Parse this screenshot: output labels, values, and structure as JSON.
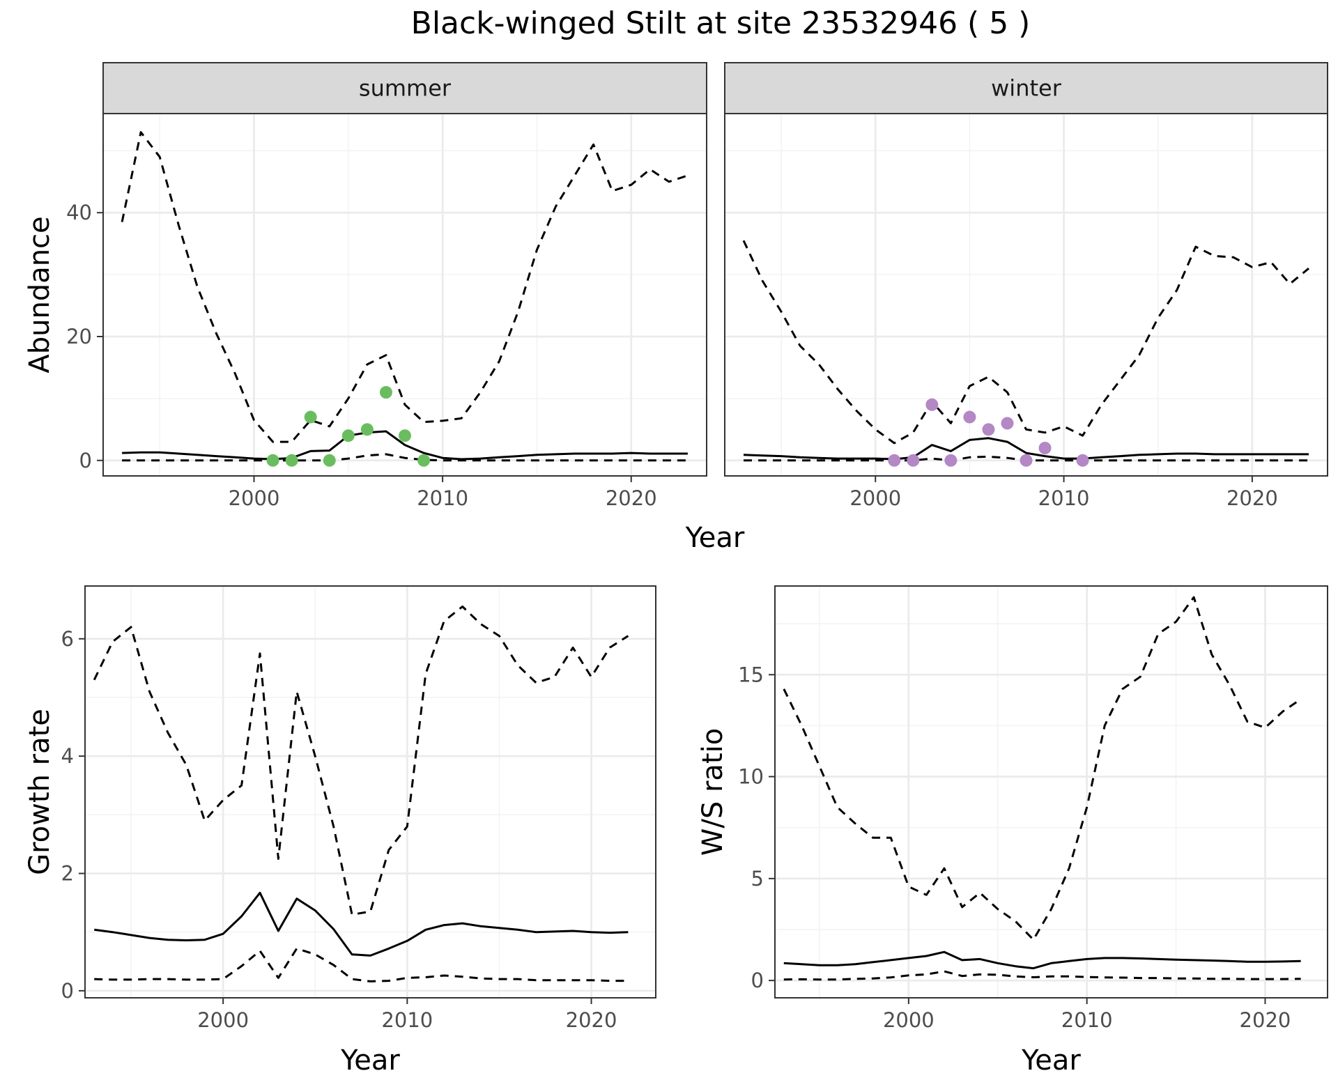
{
  "figure": {
    "title": "Black-winged Stilt at site 23532946 ( 5 )"
  },
  "chart_data": [
    {
      "id": "abundance-summer",
      "type": "line",
      "facet": "summer",
      "xlabel": "Year",
      "ylabel": "Abundance",
      "xlim": [
        1992,
        2024
      ],
      "ylim": [
        -2.5,
        56
      ],
      "xticks": [
        2000,
        2010,
        2020
      ],
      "yticks": [
        0,
        20,
        40
      ],
      "grid": true,
      "points_color": "#6ABD5F",
      "x": [
        1993,
        1994,
        1995,
        1996,
        1997,
        1998,
        1999,
        2000,
        2001,
        2002,
        2003,
        2004,
        2005,
        2006,
        2007,
        2008,
        2009,
        2010,
        2011,
        2012,
        2013,
        2014,
        2015,
        2016,
        2017,
        2018,
        2019,
        2020,
        2021,
        2022,
        2023
      ],
      "series": [
        {
          "role": "mean",
          "dash": "solid",
          "values": [
            1.2,
            1.3,
            1.3,
            1.1,
            0.9,
            0.7,
            0.5,
            0.3,
            0.2,
            0.4,
            1.5,
            1.6,
            4.0,
            4.5,
            4.7,
            2.5,
            1.2,
            0.4,
            0.2,
            0.3,
            0.5,
            0.7,
            0.9,
            1.0,
            1.1,
            1.1,
            1.1,
            1.2,
            1.1,
            1.1,
            1.1
          ]
        },
        {
          "role": "upper",
          "dash": "dashed",
          "values": [
            38.5,
            53,
            49,
            38,
            28,
            20.5,
            14,
            6.5,
            3,
            3,
            6.5,
            5.5,
            10,
            15.5,
            17,
            9,
            6.2,
            6.4,
            6.8,
            11,
            16,
            24,
            34,
            41,
            46,
            51,
            43.5,
            44.5,
            47,
            45,
            46
          ]
        },
        {
          "role": "lower",
          "dash": "dashed",
          "values": [
            0,
            0,
            0,
            0,
            0,
            0,
            0,
            0,
            0,
            0,
            0,
            0,
            0.3,
            0.8,
            1.0,
            0.4,
            0.1,
            0,
            0,
            0,
            0,
            0,
            0,
            0,
            0,
            0,
            0,
            0,
            0,
            0,
            0
          ]
        }
      ],
      "points": {
        "x": [
          2001,
          2002,
          2003,
          2004,
          2005,
          2006,
          2007,
          2008,
          2009
        ],
        "y": [
          0,
          0,
          7,
          0,
          4,
          5,
          11,
          4,
          0
        ]
      }
    },
    {
      "id": "abundance-winter",
      "type": "line",
      "facet": "winter",
      "xlabel": "Year",
      "ylabel": "Abundance",
      "xlim": [
        1992,
        2024
      ],
      "ylim": [
        -2.5,
        56
      ],
      "xticks": [
        2000,
        2010,
        2020
      ],
      "yticks": [
        0,
        20,
        40
      ],
      "grid": true,
      "points_color": "#B487C5",
      "x": [
        1993,
        1994,
        1995,
        1996,
        1997,
        1998,
        1999,
        2000,
        2001,
        2002,
        2003,
        2004,
        2005,
        2006,
        2007,
        2008,
        2009,
        2010,
        2011,
        2012,
        2013,
        2014,
        2015,
        2016,
        2017,
        2018,
        2019,
        2020,
        2021,
        2022,
        2023
      ],
      "series": [
        {
          "role": "mean",
          "dash": "solid",
          "values": [
            0.9,
            0.8,
            0.7,
            0.5,
            0.4,
            0.3,
            0.3,
            0.3,
            0.2,
            0.5,
            2.5,
            1.5,
            3.3,
            3.6,
            3.0,
            1.2,
            0.7,
            0.3,
            0.3,
            0.5,
            0.7,
            0.9,
            1.0,
            1.1,
            1.1,
            1.0,
            1.0,
            1.0,
            1.0,
            1.0,
            1.0
          ]
        },
        {
          "role": "upper",
          "dash": "dashed",
          "values": [
            35.5,
            29,
            24,
            18.5,
            15.5,
            11.5,
            8,
            5,
            2.8,
            4.5,
            9.5,
            6,
            12,
            13.5,
            11,
            5,
            4.5,
            5.5,
            4,
            9,
            13,
            17,
            23,
            27.5,
            34.5,
            33,
            32.8,
            31.2,
            32,
            28.5,
            31
          ]
        },
        {
          "role": "lower",
          "dash": "dashed",
          "values": [
            0,
            0,
            0,
            0,
            0,
            0,
            0,
            0,
            0,
            0,
            0.3,
            0,
            0.5,
            0.6,
            0.4,
            0,
            0,
            0,
            0,
            0,
            0,
            0,
            0,
            0,
            0,
            0,
            0,
            0,
            0,
            0,
            0
          ]
        }
      ],
      "points": {
        "x": [
          2001,
          2002,
          2003,
          2004,
          2005,
          2006,
          2007,
          2008,
          2009,
          2011
        ],
        "y": [
          0,
          0,
          9,
          0,
          7,
          5,
          6,
          0,
          2,
          0
        ]
      }
    },
    {
      "id": "growth-rate",
      "type": "line",
      "xlabel": "Year",
      "ylabel": "Growth rate",
      "xlim": [
        1992.5,
        2023.5
      ],
      "ylim": [
        -0.12,
        6.9
      ],
      "xticks": [
        2000,
        2010,
        2020
      ],
      "yticks": [
        0,
        2,
        4,
        6
      ],
      "grid": true,
      "x": [
        1993,
        1994,
        1995,
        1996,
        1997,
        1998,
        1999,
        2000,
        2001,
        2002,
        2003,
        2004,
        2005,
        2006,
        2007,
        2008,
        2009,
        2010,
        2011,
        2012,
        2013,
        2014,
        2015,
        2016,
        2017,
        2018,
        2019,
        2020,
        2021,
        2022
      ],
      "series": [
        {
          "role": "mean",
          "dash": "solid",
          "values": [
            1.04,
            1.0,
            0.95,
            0.9,
            0.87,
            0.86,
            0.87,
            0.97,
            1.27,
            1.67,
            1.02,
            1.57,
            1.37,
            1.05,
            0.62,
            0.6,
            0.72,
            0.85,
            1.04,
            1.12,
            1.15,
            1.1,
            1.07,
            1.04,
            1.0,
            1.01,
            1.02,
            1.0,
            0.99,
            1.0
          ]
        },
        {
          "role": "upper",
          "dash": "dashed",
          "values": [
            5.3,
            5.95,
            6.2,
            5.1,
            4.4,
            3.85,
            2.9,
            3.25,
            3.5,
            5.75,
            2.25,
            5.1,
            4.0,
            2.8,
            1.3,
            1.35,
            2.4,
            2.8,
            5.4,
            6.3,
            6.55,
            6.25,
            6.05,
            5.55,
            5.25,
            5.35,
            5.85,
            5.35,
            5.85,
            6.05
          ]
        },
        {
          "role": "lower",
          "dash": "dashed",
          "values": [
            0.2,
            0.19,
            0.19,
            0.2,
            0.2,
            0.19,
            0.19,
            0.2,
            0.42,
            0.68,
            0.22,
            0.72,
            0.62,
            0.44,
            0.2,
            0.16,
            0.17,
            0.22,
            0.23,
            0.26,
            0.24,
            0.21,
            0.2,
            0.2,
            0.18,
            0.18,
            0.18,
            0.18,
            0.17,
            0.17
          ]
        }
      ]
    },
    {
      "id": "ws-ratio",
      "type": "line",
      "xlabel": "Year",
      "ylabel": "W/S ratio",
      "xlim": [
        1992.5,
        2023.5
      ],
      "ylim": [
        -0.85,
        19.35
      ],
      "xticks": [
        2000,
        2010,
        2020
      ],
      "yticks": [
        0,
        5,
        10,
        15
      ],
      "grid": true,
      "x": [
        1993,
        1994,
        1995,
        1996,
        1997,
        1998,
        1999,
        2000,
        2001,
        2002,
        2003,
        2004,
        2005,
        2006,
        2007,
        2008,
        2009,
        2010,
        2011,
        2012,
        2013,
        2014,
        2015,
        2016,
        2017,
        2018,
        2019,
        2020,
        2021,
        2022
      ],
      "series": [
        {
          "role": "mean",
          "dash": "solid",
          "values": [
            0.85,
            0.8,
            0.75,
            0.75,
            0.8,
            0.9,
            1.0,
            1.1,
            1.2,
            1.4,
            1.0,
            1.05,
            0.85,
            0.7,
            0.6,
            0.85,
            0.95,
            1.05,
            1.1,
            1.1,
            1.08,
            1.05,
            1.02,
            1.0,
            0.98,
            0.95,
            0.92,
            0.92,
            0.93,
            0.95
          ]
        },
        {
          "role": "upper",
          "dash": "dashed",
          "values": [
            14.3,
            12.5,
            10.5,
            8.5,
            7.7,
            7.0,
            7.0,
            4.6,
            4.2,
            5.5,
            3.6,
            4.3,
            3.5,
            2.9,
            2.0,
            3.5,
            5.5,
            8.5,
            12.5,
            14.3,
            14.9,
            17.0,
            17.6,
            18.8,
            16.0,
            14.5,
            12.7,
            12.4,
            13.2,
            13.8
          ]
        },
        {
          "role": "lower",
          "dash": "dashed",
          "values": [
            0.05,
            0.06,
            0.05,
            0.05,
            0.08,
            0.1,
            0.15,
            0.25,
            0.3,
            0.45,
            0.22,
            0.3,
            0.28,
            0.2,
            0.16,
            0.2,
            0.2,
            0.17,
            0.15,
            0.14,
            0.12,
            0.12,
            0.1,
            0.1,
            0.08,
            0.08,
            0.07,
            0.07,
            0.07,
            0.08
          ]
        }
      ]
    }
  ]
}
